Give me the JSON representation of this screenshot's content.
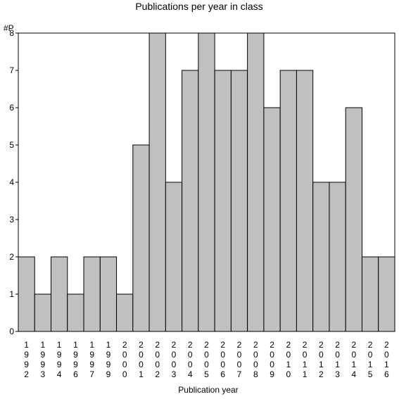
{
  "chart_data": {
    "type": "bar",
    "title": "Publications per year in class",
    "ylabel": "#P",
    "xlabel": "Publication year",
    "categories": [
      "1992",
      "1993",
      "1994",
      "1996",
      "1997",
      "1999",
      "2000",
      "2001",
      "2002",
      "2003",
      "2004",
      "2005",
      "2006",
      "2007",
      "2008",
      "2009",
      "2010",
      "2011",
      "2012",
      "2013",
      "2014",
      "2015",
      "2016"
    ],
    "values": [
      2,
      1,
      2,
      1,
      2,
      2,
      1,
      5,
      8,
      4,
      7,
      8,
      7,
      7,
      8,
      6,
      7,
      7,
      4,
      4,
      6,
      2,
      2
    ],
    "ylim": [
      0,
      8
    ],
    "yticks": [
      0,
      1,
      2,
      3,
      4,
      5,
      6,
      7,
      8
    ],
    "grid": false,
    "colors": {
      "bar_fill": "#c0c0c0",
      "bar_stroke": "#000000",
      "frame": "#000000"
    }
  }
}
